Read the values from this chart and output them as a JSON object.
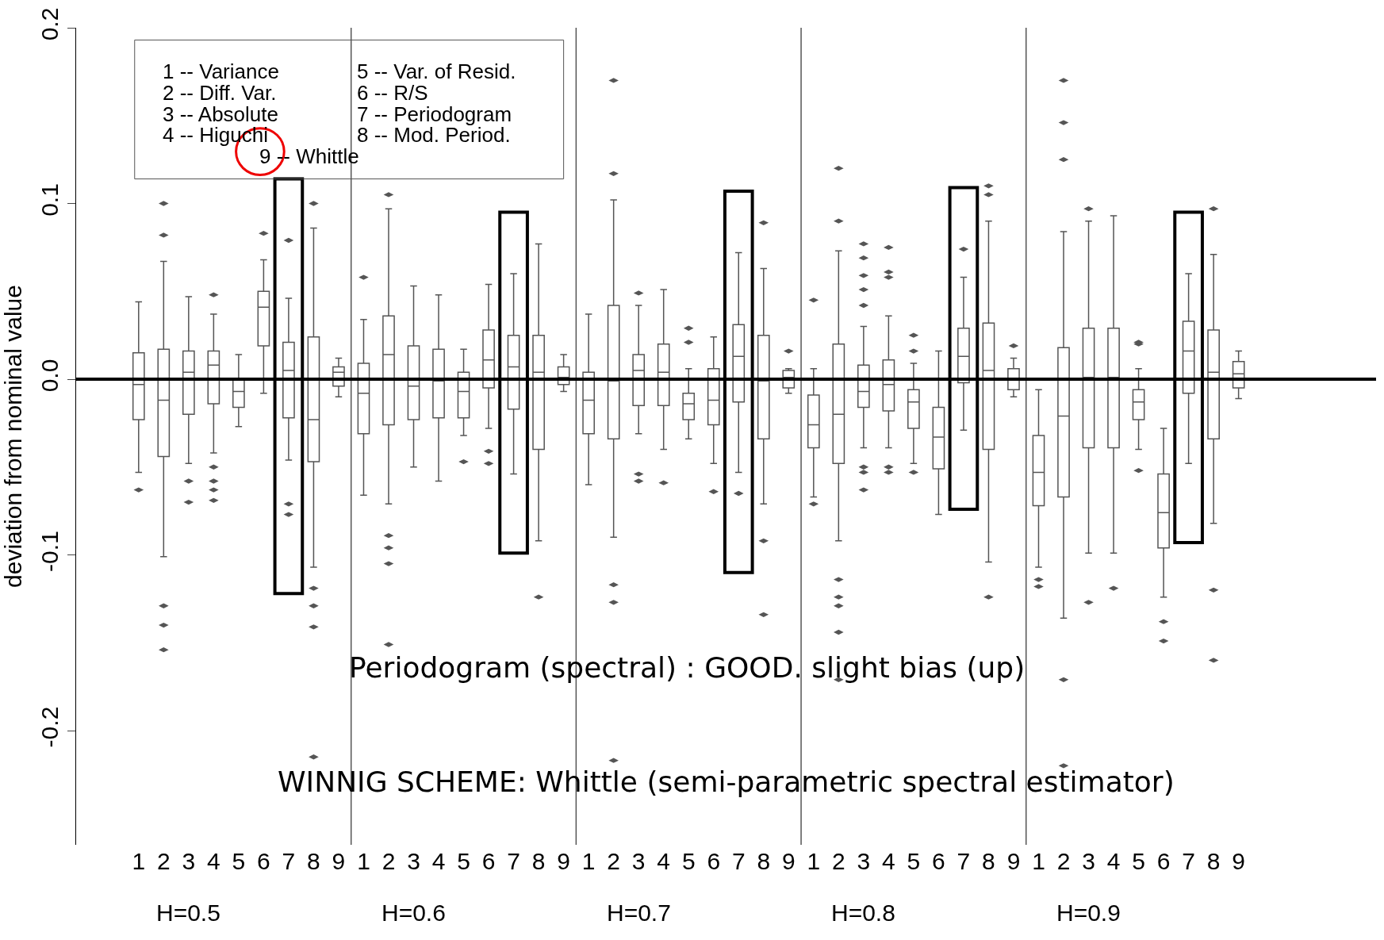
{
  "chart_data": {
    "type": "box",
    "ylabel": "deviation from nominal value",
    "categories": [
      "1",
      "2",
      "3",
      "4",
      "5",
      "6",
      "7",
      "8",
      "9",
      "1",
      "2",
      "3",
      "4",
      "5",
      "6",
      "7",
      "8",
      "9",
      "1",
      "2",
      "3",
      "4",
      "5",
      "6",
      "7",
      "8",
      "9",
      "1",
      "2",
      "3",
      "4",
      "5",
      "6",
      "7",
      "8",
      "9",
      "1",
      "2",
      "3",
      "4",
      "5",
      "6",
      "7",
      "8",
      "9"
    ],
    "boxes": [
      {
        "low": -0.053,
        "q1": -0.023,
        "median": -0.003,
        "q3": 0.015,
        "high": 0.044,
        "outliers": [
          -0.063
        ]
      },
      {
        "low": -0.101,
        "q1": -0.044,
        "median": -0.012,
        "q3": 0.017,
        "high": 0.067,
        "outliers": [
          0.1,
          0.082,
          -0.129,
          -0.14,
          -0.154
        ]
      },
      {
        "low": -0.048,
        "q1": -0.02,
        "median": 0.004,
        "q3": 0.016,
        "high": 0.047,
        "outliers": [
          -0.058,
          -0.07
        ]
      },
      {
        "low": -0.042,
        "q1": -0.014,
        "median": 0.008,
        "q3": 0.016,
        "high": 0.037,
        "outliers": [
          0.048,
          -0.05,
          -0.058,
          -0.063,
          -0.069
        ]
      },
      {
        "low": -0.027,
        "q1": -0.016,
        "median": -0.007,
        "q3": 0.0,
        "high": 0.014
      },
      {
        "low": -0.008,
        "q1": 0.019,
        "median": 0.041,
        "q3": 0.05,
        "high": 0.068,
        "outliers": [
          0.083
        ]
      },
      {
        "low": -0.046,
        "q1": -0.022,
        "median": 0.005,
        "q3": 0.021,
        "high": 0.046,
        "outliers": [
          0.079,
          -0.071,
          -0.077
        ]
      },
      {
        "low": -0.107,
        "q1": -0.047,
        "median": -0.023,
        "q3": 0.024,
        "high": 0.086,
        "outliers": [
          0.1,
          -0.119,
          -0.129,
          -0.141,
          -0.215
        ]
      },
      {
        "low": -0.01,
        "q1": -0.004,
        "median": 0.004,
        "q3": 0.007,
        "high": 0.012
      },
      {
        "low": -0.066,
        "q1": -0.031,
        "median": -0.008,
        "q3": 0.009,
        "high": 0.034,
        "outliers": [
          0.058
        ]
      },
      {
        "low": -0.071,
        "q1": -0.026,
        "median": 0.014,
        "q3": 0.036,
        "high": 0.097,
        "outliers": [
          0.105,
          -0.089,
          -0.096,
          -0.105,
          -0.151
        ]
      },
      {
        "low": -0.05,
        "q1": -0.023,
        "median": -0.004,
        "q3": 0.019,
        "high": 0.053
      },
      {
        "low": -0.058,
        "q1": -0.022,
        "median": -0.001,
        "q3": 0.017,
        "high": 0.048
      },
      {
        "low": -0.032,
        "q1": -0.022,
        "median": -0.007,
        "q3": 0.004,
        "high": 0.017,
        "outliers": [
          -0.047
        ]
      },
      {
        "low": -0.028,
        "q1": -0.005,
        "median": 0.011,
        "q3": 0.028,
        "high": 0.054,
        "outliers": [
          -0.041,
          -0.048
        ]
      },
      {
        "low": -0.054,
        "q1": -0.017,
        "median": 0.007,
        "q3": 0.025,
        "high": 0.06
      },
      {
        "low": -0.092,
        "q1": -0.04,
        "median": 0.004,
        "q3": 0.025,
        "high": 0.077,
        "outliers": [
          -0.124
        ]
      },
      {
        "low": -0.007,
        "q1": -0.003,
        "median": 0.001,
        "q3": 0.007,
        "high": 0.014
      },
      {
        "low": -0.06,
        "q1": -0.031,
        "median": -0.012,
        "q3": 0.004,
        "high": 0.037
      },
      {
        "low": -0.09,
        "q1": -0.034,
        "median": -0.001,
        "q3": 0.042,
        "high": 0.102,
        "outliers": [
          0.17,
          0.117,
          -0.117,
          -0.127,
          -0.217
        ]
      },
      {
        "low": -0.031,
        "q1": -0.015,
        "median": 0.005,
        "q3": 0.014,
        "high": 0.042,
        "outliers": [
          0.049,
          -0.054,
          -0.058
        ]
      },
      {
        "low": -0.04,
        "q1": -0.015,
        "median": 0.004,
        "q3": 0.02,
        "high": 0.051,
        "outliers": [
          -0.059
        ]
      },
      {
        "low": -0.034,
        "q1": -0.023,
        "median": -0.014,
        "q3": -0.008,
        "high": 0.006,
        "outliers": [
          0.029,
          0.021
        ]
      },
      {
        "low": -0.048,
        "q1": -0.026,
        "median": -0.012,
        "q3": 0.006,
        "high": 0.024,
        "outliers": [
          -0.064
        ]
      },
      {
        "low": -0.053,
        "q1": -0.013,
        "median": 0.013,
        "q3": 0.031,
        "high": 0.072,
        "outliers": [
          -0.065
        ]
      },
      {
        "low": -0.071,
        "q1": -0.034,
        "median": -0.001,
        "q3": 0.025,
        "high": 0.063,
        "outliers": [
          0.089,
          -0.092,
          -0.134
        ]
      },
      {
        "low": -0.008,
        "q1": -0.005,
        "median": 0.001,
        "q3": 0.005,
        "high": 0.006,
        "outliers": [
          0.016
        ]
      },
      {
        "low": -0.067,
        "q1": -0.039,
        "median": -0.026,
        "q3": -0.009,
        "high": 0.006,
        "outliers": [
          0.045,
          -0.071
        ]
      },
      {
        "low": -0.092,
        "q1": -0.048,
        "median": -0.02,
        "q3": 0.02,
        "high": 0.073,
        "outliers": [
          0.12,
          0.09,
          -0.114,
          -0.124,
          -0.129,
          -0.144,
          -0.171
        ]
      },
      {
        "low": -0.039,
        "q1": -0.016,
        "median": -0.007,
        "q3": 0.008,
        "high": 0.03,
        "outliers": [
          0.077,
          0.069,
          0.059,
          0.051,
          0.042,
          -0.05,
          -0.053,
          -0.063
        ]
      },
      {
        "low": -0.039,
        "q1": -0.018,
        "median": -0.003,
        "q3": 0.011,
        "high": 0.036,
        "outliers": [
          0.075,
          0.061,
          0.058,
          -0.05,
          -0.053
        ]
      },
      {
        "low": -0.048,
        "q1": -0.028,
        "median": -0.013,
        "q3": -0.006,
        "high": 0.009,
        "outliers": [
          0.025,
          0.016,
          -0.053
        ]
      },
      {
        "low": -0.077,
        "q1": -0.051,
        "median": -0.033,
        "q3": -0.016,
        "high": 0.016
      },
      {
        "low": -0.029,
        "q1": -0.002,
        "median": 0.013,
        "q3": 0.029,
        "high": 0.058,
        "outliers": [
          0.074
        ]
      },
      {
        "low": -0.104,
        "q1": -0.04,
        "median": 0.005,
        "q3": 0.032,
        "high": 0.09,
        "outliers": [
          0.11,
          0.105,
          -0.124
        ]
      },
      {
        "low": -0.01,
        "q1": -0.006,
        "median": 0.0,
        "q3": 0.006,
        "high": 0.012,
        "outliers": [
          0.019
        ]
      },
      {
        "low": -0.107,
        "q1": -0.072,
        "median": -0.053,
        "q3": -0.032,
        "high": -0.006,
        "outliers": [
          -0.114,
          -0.118
        ]
      },
      {
        "low": -0.136,
        "q1": -0.067,
        "median": -0.021,
        "q3": 0.018,
        "high": 0.084,
        "outliers": [
          0.17,
          0.146,
          0.125,
          -0.171,
          -0.22
        ]
      },
      {
        "low": -0.099,
        "q1": -0.039,
        "median": 0.001,
        "q3": 0.029,
        "high": 0.09,
        "outliers": [
          0.097,
          -0.127
        ]
      },
      {
        "low": -0.099,
        "q1": -0.039,
        "median": 0.001,
        "q3": 0.029,
        "high": 0.093,
        "outliers": [
          -0.119
        ]
      },
      {
        "low": -0.04,
        "q1": -0.023,
        "median": -0.013,
        "q3": -0.006,
        "high": 0.006,
        "outliers": [
          0.021,
          0.02,
          -0.052
        ]
      },
      {
        "low": -0.124,
        "q1": -0.096,
        "median": -0.076,
        "q3": -0.054,
        "high": -0.028,
        "outliers": [
          -0.138,
          -0.149
        ]
      },
      {
        "low": -0.048,
        "q1": -0.008,
        "median": 0.016,
        "q3": 0.033,
        "high": 0.06
      },
      {
        "low": -0.082,
        "q1": -0.034,
        "median": 0.004,
        "q3": 0.028,
        "high": 0.071,
        "outliers": [
          0.097,
          -0.12,
          -0.16
        ]
      },
      {
        "low": -0.011,
        "q1": -0.005,
        "median": 0.003,
        "q3": 0.01,
        "high": 0.016
      }
    ],
    "color": "#555555",
    "ylim": [
      -0.265,
      0.2
    ],
    "yticks": [
      -0.2,
      -0.1,
      {
        "value": 0,
        "label": "0.0"
      },
      0.1,
      0.2
    ],
    "ref_lines": [
      {
        "axis": "y",
        "value": 0,
        "color": "#000000"
      }
    ],
    "annotations": [
      "1 -- Variance",
      "2 -- Diff. Var.",
      "3 -- Absolute",
      "4 -- Higuchi",
      "5 -- Var. of Resid.",
      "6 -- R/S",
      "7 -- Periodogram",
      "8 -- Mod. Period.",
      "9 -- Whittle",
      "Periodogram (spectral) : GOOD. slight bias (up)",
      "WINNIG SCHEME: Whittle (semi-parametric spectral estimator)",
      "H=0.5",
      "H=0.6",
      "H=0.7",
      "H=0.8",
      "H=0.9"
    ]
  }
}
